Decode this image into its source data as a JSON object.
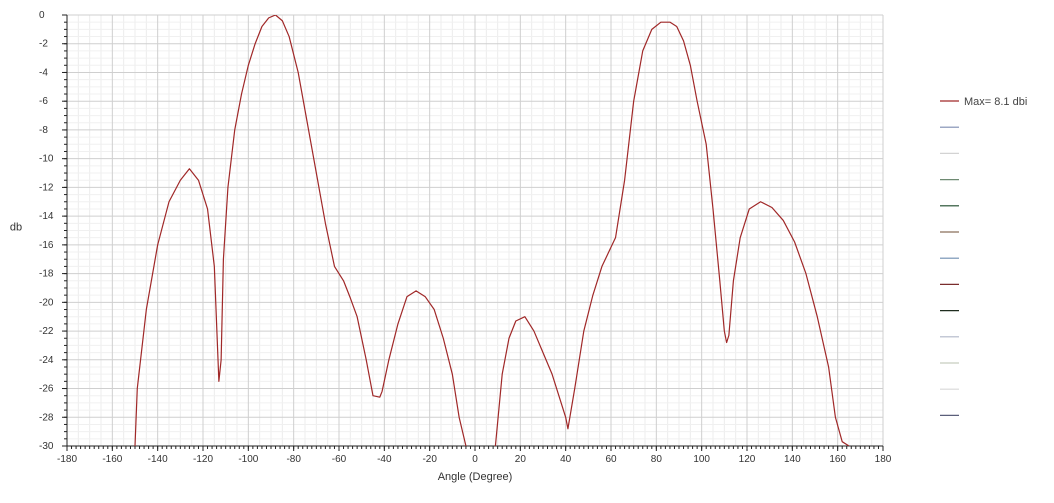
{
  "chart_data": {
    "type": "line",
    "xlabel": "Angle (Degree)",
    "ylabel": "db",
    "xlim": [
      -180,
      180
    ],
    "ylim": [
      -30,
      0
    ],
    "x_ticks": [
      -180,
      -160,
      -140,
      -120,
      -100,
      -80,
      -60,
      -40,
      -20,
      0,
      20,
      40,
      60,
      80,
      100,
      120,
      140,
      160,
      180
    ],
    "y_ticks": [
      0,
      -2,
      -4,
      -6,
      -8,
      -10,
      -12,
      -14,
      -16,
      -18,
      -20,
      -22,
      -24,
      -26,
      -28,
      -30
    ],
    "grid": true,
    "legend_position": "right",
    "series": [
      {
        "name": "Max= 8.1 dbi",
        "color": "#a02828",
        "x": [
          -150,
          -149,
          -145,
          -140,
          -135,
          -130,
          -126,
          -122,
          -118,
          -115,
          -113,
          -112,
          -111,
          -109,
          -106,
          -103,
          -100,
          -97,
          -94,
          -91,
          -88,
          -85,
          -82,
          -78,
          -74,
          -70,
          -66,
          -62,
          -58,
          -55,
          -52,
          -48,
          -45,
          -42,
          -41,
          -38,
          -34,
          -30,
          -26,
          -22,
          -18,
          -14,
          -10,
          -7,
          -4,
          -2,
          8,
          9,
          12,
          15,
          18,
          22,
          26,
          30,
          34,
          37,
          40,
          41,
          44,
          48,
          52,
          56,
          59,
          62,
          66,
          70,
          74,
          78,
          82,
          86,
          89,
          92,
          95,
          98,
          102,
          105,
          108,
          110,
          111,
          112,
          114,
          117,
          121,
          126,
          131,
          136,
          141,
          146,
          151,
          156,
          159,
          162,
          165
        ],
        "y": [
          -30,
          -26,
          -20.5,
          -16,
          -13,
          -11.5,
          -10.7,
          -11.5,
          -13.5,
          -17.5,
          -25.5,
          -24,
          -17,
          -12,
          -8,
          -5.5,
          -3.5,
          -2,
          -0.8,
          -0.2,
          0,
          -0.4,
          -1.5,
          -4,
          -7.5,
          -11,
          -14.5,
          -17.5,
          -18.5,
          -19.7,
          -21,
          -24,
          -26.5,
          -26.6,
          -26.2,
          -24,
          -21.5,
          -19.6,
          -19.2,
          -19.6,
          -20.5,
          -22.5,
          -25,
          -28,
          -30,
          -31,
          -31,
          -30,
          -25,
          -22.5,
          -21.3,
          -21,
          -22,
          -23.5,
          -25,
          -26.5,
          -28,
          -28.8,
          -26,
          -22,
          -19.5,
          -17.5,
          -16.5,
          -15.5,
          -11.5,
          -6,
          -2.5,
          -1,
          -0.5,
          -0.5,
          -0.8,
          -1.8,
          -3.5,
          -6,
          -9,
          -13.5,
          -18.5,
          -22,
          -22.8,
          -22.3,
          -18.5,
          -15.5,
          -13.5,
          -13,
          -13.4,
          -14.3,
          -15.8,
          -18,
          -21,
          -24.5,
          -28,
          -29.7,
          -30
        ]
      },
      {
        "name": "",
        "color": "#7d8cb0",
        "x": [],
        "y": []
      },
      {
        "name": "",
        "color": "#d3d3d3",
        "x": [],
        "y": []
      },
      {
        "name": "",
        "color": "#6e8a72",
        "x": [],
        "y": []
      },
      {
        "name": "",
        "color": "#1d4a2a",
        "x": [],
        "y": []
      },
      {
        "name": "",
        "color": "#8a6f5a",
        "x": [],
        "y": []
      },
      {
        "name": "",
        "color": "#6f8db0",
        "x": [],
        "y": []
      },
      {
        "name": "",
        "color": "#7a2d2d",
        "x": [],
        "y": []
      },
      {
        "name": "",
        "color": "#1f2d1f",
        "x": [],
        "y": []
      },
      {
        "name": "",
        "color": "#b0b7c9",
        "x": [],
        "y": []
      },
      {
        "name": "",
        "color": "#c7cdbf",
        "x": [],
        "y": []
      },
      {
        "name": "",
        "color": "#d9d9d9",
        "x": [],
        "y": []
      },
      {
        "name": "",
        "color": "#5a5f7a",
        "x": [],
        "y": []
      }
    ]
  }
}
